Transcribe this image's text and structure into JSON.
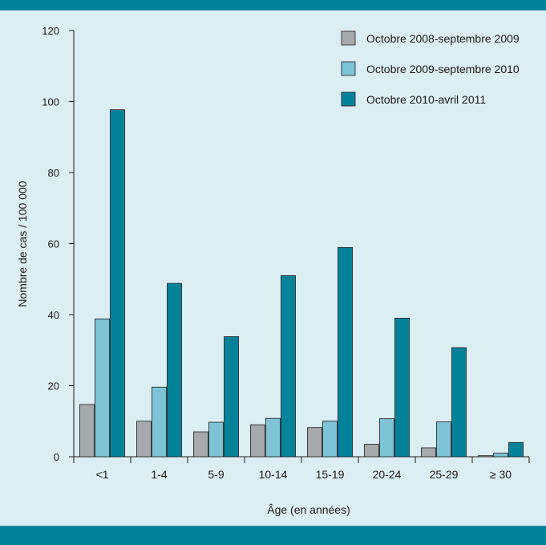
{
  "colors": {
    "background": "#dbeef3",
    "band": "#00829b",
    "series": [
      "#a8a9ad",
      "#7fc4d6",
      "#00829b"
    ],
    "stroke": "#1a1a1a"
  },
  "chart_data": {
    "type": "bar",
    "title": "",
    "xlabel": "Âge (en années)",
    "ylabel": "Nombre de cas / 100 000",
    "ylim": [
      0,
      120
    ],
    "yticks": [
      0,
      20,
      40,
      60,
      80,
      100,
      120
    ],
    "yticks_labels": [
      "0",
      "20",
      "40",
      "60",
      "80",
      "100",
      "120"
    ],
    "categories": [
      "<1",
      "1-4",
      "5-9",
      "10-14",
      "15-19",
      "20-24",
      "25-29",
      "≥ 30"
    ],
    "series": [
      {
        "name": "Octobre 2008-septembre 2009",
        "values": [
          14.7,
          10,
          7,
          9,
          8.2,
          3.5,
          2.5,
          0.3
        ]
      },
      {
        "name": "Octobre 2009-septembre 2010",
        "values": [
          38.8,
          19.6,
          9.7,
          10.8,
          10,
          10.7,
          9.8,
          1
        ]
      },
      {
        "name": "Octobre 2010-avril 2011",
        "values": [
          97.7,
          48.8,
          33.8,
          51,
          58.9,
          39,
          30.7,
          4
        ]
      }
    ],
    "legend": "top-right",
    "grid": false
  }
}
